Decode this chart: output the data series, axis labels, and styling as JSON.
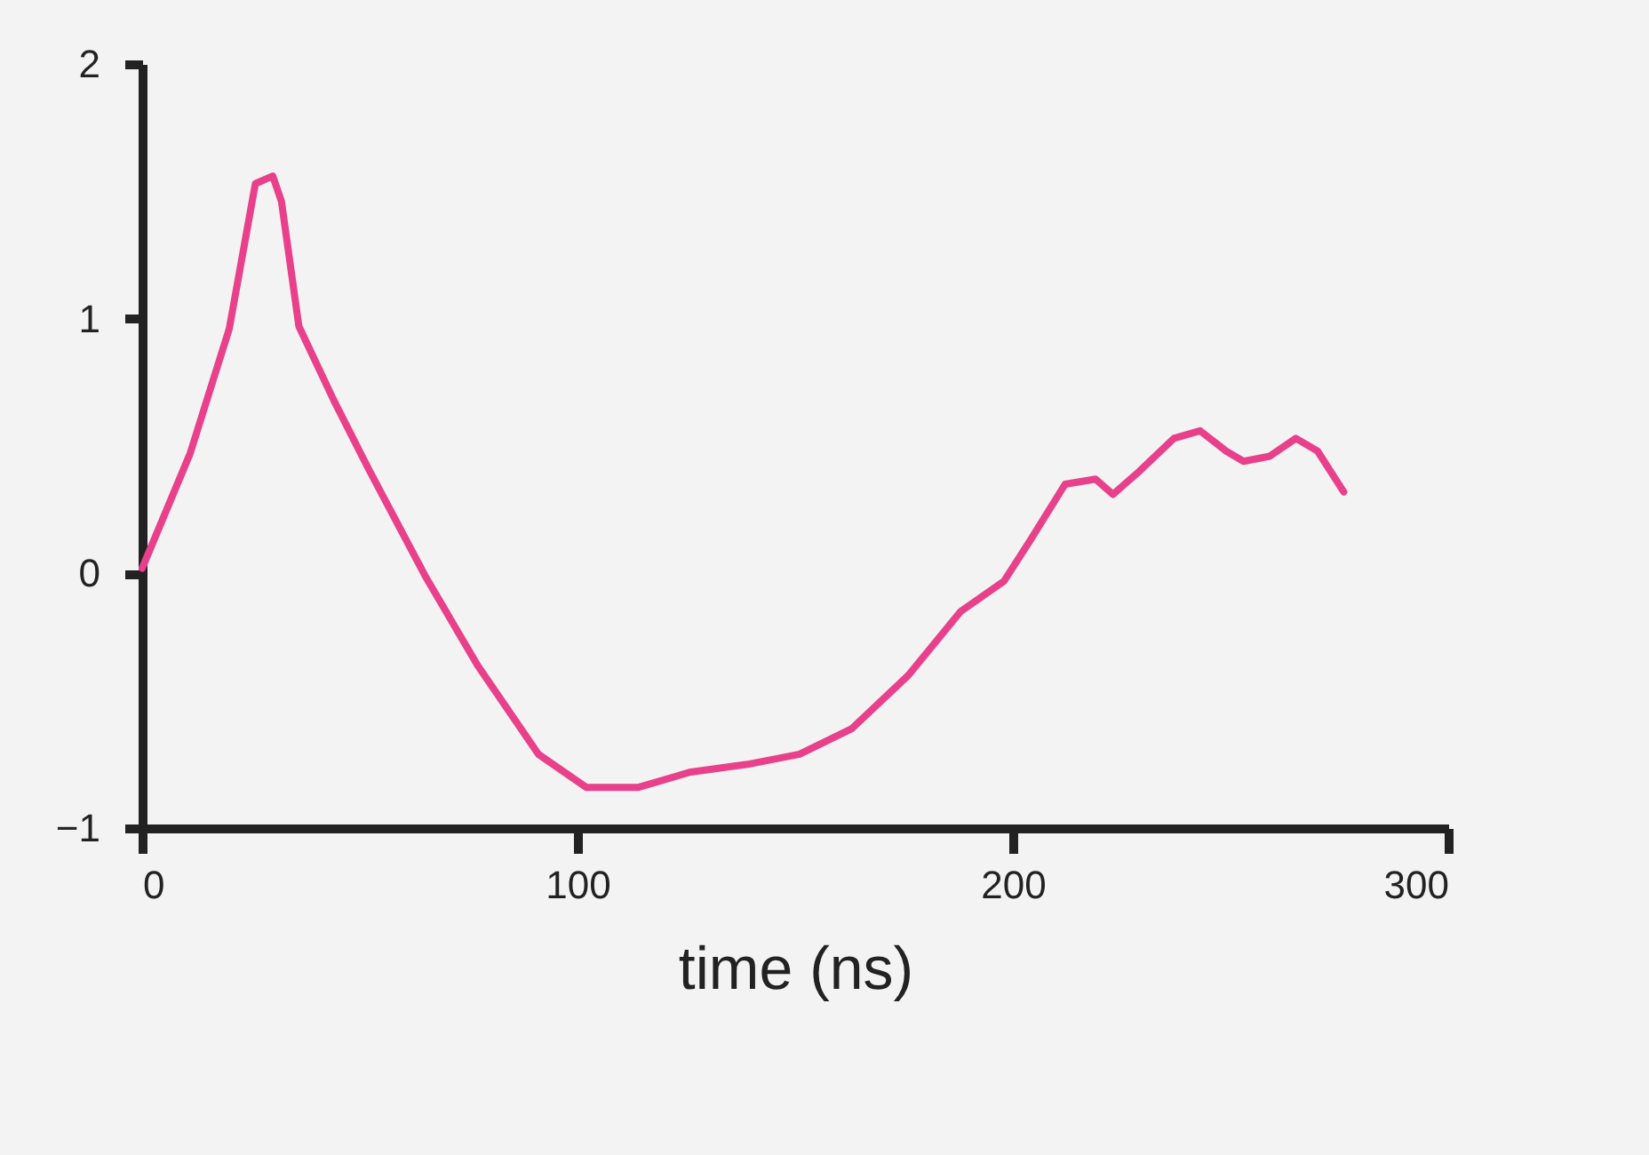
{
  "chart_data": {
    "type": "line",
    "xlabel": "time (ns)",
    "xlim": [
      0,
      300
    ],
    "ylim": [
      -1,
      2
    ],
    "xticks": [
      0,
      100,
      200,
      300
    ],
    "yticks": [
      -1,
      0,
      1,
      2
    ],
    "grid": false,
    "marker": "none",
    "line_style": "solid",
    "x": [
      0,
      11,
      20,
      26,
      30,
      32,
      36,
      44,
      52,
      65,
      77,
      91,
      102,
      114,
      126,
      139,
      151,
      163,
      176,
      188,
      198,
      204,
      212,
      219,
      223,
      229,
      237,
      243,
      249,
      253,
      259,
      265,
      270,
      276
    ],
    "series": [
      {
        "color": "#e8408a",
        "values": [
          0.02,
          0.47,
          0.96,
          1.53,
          1.56,
          1.46,
          0.97,
          0.68,
          0.41,
          -0.01,
          -0.36,
          -0.71,
          -0.84,
          -0.84,
          -0.78,
          -0.75,
          -0.71,
          -0.61,
          -0.4,
          -0.15,
          -0.03,
          0.13,
          0.35,
          0.37,
          0.31,
          0.4,
          0.53,
          0.56,
          0.48,
          0.44,
          0.46,
          0.53,
          0.48,
          0.32
        ]
      }
    ]
  }
}
